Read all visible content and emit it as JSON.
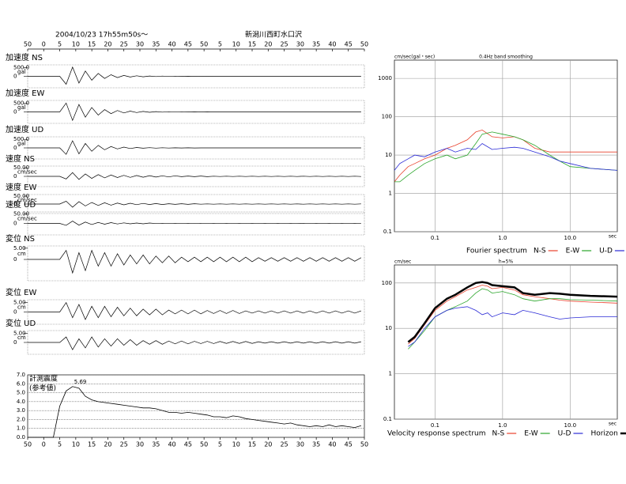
{
  "chart_data": [
    {
      "type": "waveform",
      "title": "2004/10/23  17h55m50s～",
      "subtitle": "新潟川西町水口沢",
      "x": [
        0,
        2,
        4,
        6,
        8,
        10,
        12,
        14,
        16,
        18,
        20,
        22,
        24,
        26,
        28,
        30,
        32,
        34,
        36,
        38,
        40,
        42,
        44,
        46,
        48,
        50,
        52,
        54,
        56,
        58,
        60,
        62,
        64,
        66,
        68,
        70,
        72,
        74,
        76,
        78,
        80,
        82,
        84,
        86,
        88,
        90,
        92,
        94,
        96,
        98,
        100,
        102,
        104
      ],
      "xlim": [
        0,
        105
      ],
      "xticks": [
        {
          "value": 0,
          "label": "50"
        },
        {
          "value": 5,
          "label": "0"
        },
        {
          "value": 10,
          "label": "5"
        },
        {
          "value": 15,
          "label": "10"
        },
        {
          "value": 20,
          "label": "15"
        },
        {
          "value": 25,
          "label": "20"
        },
        {
          "value": 30,
          "label": "25"
        },
        {
          "value": 35,
          "label": "30"
        },
        {
          "value": 40,
          "label": "35"
        },
        {
          "value": 45,
          "label": "40"
        },
        {
          "value": 50,
          "label": "45"
        },
        {
          "value": 55,
          "label": "50"
        },
        {
          "value": 60,
          "label": "5"
        },
        {
          "value": 65,
          "label": "10"
        },
        {
          "value": 70,
          "label": "15"
        },
        {
          "value": 75,
          "label": "20"
        },
        {
          "value": 80,
          "label": "25"
        },
        {
          "value": 85,
          "label": "30"
        },
        {
          "value": 90,
          "label": "35"
        },
        {
          "value": 95,
          "label": "40"
        },
        {
          "value": 100,
          "label": "45"
        },
        {
          "value": 105,
          "label": "50"
        }
      ],
      "series": [
        {
          "name": "加速度 NS",
          "unit": "gal",
          "color": "#000",
          "ylim": [
            -650,
            650
          ],
          "yticks": [
            {
              "value": 500,
              "label": "500.0"
            },
            0
          ],
          "values": [
            0,
            0,
            0,
            0,
            0,
            0,
            -450,
            520,
            -380,
            300,
            -220,
            160,
            -120,
            90,
            -70,
            50,
            -40,
            30,
            -25,
            20,
            -15,
            12,
            -10,
            8,
            -6,
            5,
            -4,
            3,
            -3,
            2,
            -2,
            2,
            -2,
            1,
            -1,
            1,
            -1,
            1,
            -1,
            1,
            -1,
            1,
            -1,
            1,
            -1,
            1,
            -1,
            1,
            -1,
            1,
            -1,
            1,
            -1
          ]
        },
        {
          "name": "加速度 EW",
          "unit": "gal",
          "color": "#000",
          "ylim": [
            -650,
            650
          ],
          "yticks": [
            {
              "value": 500,
              "label": "500.0"
            },
            0
          ],
          "values": [
            0,
            0,
            0,
            0,
            0,
            0,
            500,
            -480,
            420,
            -300,
            250,
            -180,
            130,
            -100,
            80,
            -60,
            45,
            -35,
            28,
            -22,
            18,
            -14,
            11,
            -9,
            7,
            -6,
            5,
            -4,
            3,
            -3,
            2,
            -2,
            2,
            -2,
            1,
            -1,
            1,
            -1,
            1,
            -1,
            1,
            -1,
            1,
            -1,
            1,
            -1,
            1,
            -1,
            1,
            -1,
            1,
            -1,
            1
          ]
        },
        {
          "name": "加速度 UD",
          "unit": "gal",
          "color": "#000",
          "ylim": [
            -650,
            650
          ],
          "yticks": [
            {
              "value": 500,
              "label": "500.0"
            },
            0
          ],
          "values": [
            0,
            0,
            0,
            0,
            0,
            0,
            -380,
            420,
            -350,
            260,
            -200,
            150,
            -110,
            80,
            -60,
            45,
            -35,
            25,
            -20,
            15,
            -12,
            9,
            -7,
            5,
            -4,
            3,
            -3,
            2,
            -2,
            2,
            -1,
            1,
            -1,
            1,
            -1,
            1,
            -1,
            1,
            -1,
            1,
            -1,
            1,
            -1,
            1,
            -1,
            1,
            -1,
            1,
            -1,
            1,
            -1,
            1,
            -1
          ]
        },
        {
          "name": "速度 NS",
          "unit": "cm/sec",
          "color": "#000",
          "ylim": [
            -60,
            60
          ],
          "yticks": [
            {
              "value": 50,
              "label": "50.00"
            },
            0
          ],
          "values": [
            0,
            0,
            0,
            0,
            0,
            0,
            -15,
            22,
            -18,
            14,
            -12,
            10,
            -9,
            8,
            -7,
            6,
            -6,
            5,
            -5,
            4,
            -4,
            3,
            -3,
            3,
            -2,
            2,
            -2,
            2,
            -2,
            1,
            -1,
            1,
            -1,
            1,
            -1,
            1,
            -1,
            1,
            -1,
            1,
            -1,
            1,
            -1,
            1,
            -1,
            1,
            -1,
            1,
            -1,
            1,
            -1,
            1,
            -1
          ]
        },
        {
          "name": "速度 EW",
          "unit": "cm/sec",
          "color": "#000",
          "ylim": [
            -60,
            60
          ],
          "yticks": [
            {
              "value": 50,
              "label": "50.00"
            },
            0
          ],
          "values": [
            0,
            0,
            0,
            0,
            0,
            0,
            18,
            -20,
            15,
            -12,
            10,
            -9,
            8,
            -7,
            6,
            -5,
            5,
            -4,
            4,
            -3,
            3,
            -3,
            2,
            -2,
            2,
            -2,
            2,
            -1,
            1,
            -1,
            1,
            -1,
            1,
            -1,
            1,
            -1,
            1,
            -1,
            1,
            -1,
            1,
            -1,
            1,
            -1,
            1,
            -1,
            1,
            -1,
            1,
            -1,
            1,
            -1,
            1
          ]
        },
        {
          "name": "速度 UD",
          "unit": "cm/sec",
          "color": "#000",
          "ylim": [
            -60,
            60
          ],
          "yticks": [
            {
              "value": 50,
              "label": "50.00"
            },
            0
          ],
          "values": [
            0,
            0,
            0,
            0,
            0,
            0,
            -10,
            12,
            -9,
            7,
            -6,
            5,
            -4,
            4,
            -3,
            3,
            -2,
            2,
            -2,
            2,
            -1,
            1,
            -1,
            1,
            -1,
            1,
            -1,
            1,
            -1,
            1,
            -1,
            1,
            -1,
            1,
            -1,
            1,
            -1,
            1,
            -1,
            1,
            -1,
            1,
            -1,
            1,
            -1,
            1,
            -1,
            1,
            -1,
            1,
            -1,
            1,
            -1
          ]
        },
        {
          "name": "変位 NS",
          "unit": "cm",
          "color": "#000",
          "ylim": [
            -9.5,
            6
          ],
          "yticks": [
            {
              "value": 5,
              "label": "5.00"
            },
            0
          ],
          "values": [
            0,
            0,
            0,
            0,
            0,
            0,
            4,
            -6,
            3,
            -5,
            4,
            -3,
            3,
            -3,
            2.5,
            -2.5,
            2,
            -2,
            2,
            -2,
            1.5,
            -1.5,
            1.5,
            -1.5,
            1,
            -1,
            1,
            -1,
            1,
            -1,
            1,
            -1,
            1,
            -1,
            1,
            -1,
            0.8,
            -0.8,
            0.8,
            -0.8,
            0.8,
            -0.8,
            0.8,
            -0.8,
            0.8,
            -0.8,
            0.8,
            -0.8,
            0.8,
            -0.8,
            0.8,
            -0.8,
            0.8
          ]
        },
        {
          "name": "変位 EW",
          "unit": "cm",
          "color": "#000",
          "ylim": [
            -6.5,
            6.5
          ],
          "yticks": [
            {
              "value": 5,
              "label": "5.00"
            },
            0
          ],
          "values": [
            0,
            0,
            0,
            0,
            0,
            0,
            5,
            -3,
            4,
            -4,
            3,
            -3,
            3,
            -2.5,
            2.5,
            -2,
            2,
            -2,
            1.5,
            -1.5,
            1.5,
            -1.5,
            1,
            -1,
            1,
            -1,
            1,
            -1,
            0.8,
            -0.8,
            0.8,
            -0.8,
            0.8,
            -0.8,
            0.6,
            -0.6,
            0.6,
            -0.6,
            0.6,
            -0.6,
            0.6,
            -0.6,
            0.6,
            -0.6,
            0.6,
            -0.6,
            0.6,
            -0.6,
            0.6,
            -0.6,
            0.6,
            -0.6,
            0.6
          ]
        },
        {
          "name": "変位 UD",
          "unit": "cm",
          "color": "#000",
          "ylim": [
            -6.5,
            6.5
          ],
          "yticks": [
            {
              "value": 5,
              "label": "5.00"
            },
            0
          ],
          "values": [
            0,
            0,
            0,
            0,
            0,
            0,
            3,
            -4,
            2,
            -3,
            3,
            -2.5,
            2,
            -2,
            2,
            -1.5,
            1.5,
            -1.5,
            1,
            -1,
            1,
            -1,
            0.8,
            -0.8,
            0.8,
            -0.8,
            0.6,
            -0.6,
            0.6,
            -0.6,
            0.5,
            -0.5,
            0.5,
            -0.5,
            0.5,
            -0.5,
            0.4,
            -0.4,
            0.4,
            -0.4,
            0.4,
            -0.4,
            0.4,
            -0.4,
            0.4,
            -0.4,
            0.4,
            -0.4,
            0.4,
            -0.4,
            0.4,
            -0.4,
            0.4
          ]
        }
      ]
    },
    {
      "type": "line",
      "subtitle": "(参考値)",
      "grid": true,
      "label_max": true,
      "ylim": [
        0,
        7
      ],
      "yticks": [
        {
          "value": 0,
          "label": "0.0"
        },
        {
          "value": 1,
          "label": "1.0"
        },
        {
          "value": 2,
          "label": "2.0"
        },
        {
          "value": 3,
          "label": "3.0"
        },
        {
          "value": 4,
          "label": "4.0"
        },
        {
          "value": 5,
          "label": "5.0"
        },
        {
          "value": 6,
          "label": "6.0"
        },
        {
          "value": 7,
          "label": "7.0"
        }
      ],
      "series": [
        {
          "name": "計測震度",
          "color": "#000",
          "values": [
            0,
            0,
            0,
            0,
            0,
            3.5,
            5.2,
            5.69,
            5.5,
            4.6,
            4.2,
            4.0,
            3.9,
            3.8,
            3.7,
            3.6,
            3.5,
            3.4,
            3.3,
            3.3,
            3.2,
            3.0,
            2.8,
            2.8,
            2.7,
            2.8,
            2.7,
            2.6,
            2.5,
            2.3,
            2.3,
            2.2,
            2.4,
            2.3,
            2.1,
            2.0,
            1.9,
            1.8,
            1.7,
            1.6,
            1.5,
            1.6,
            1.4,
            1.3,
            1.2,
            1.3,
            1.2,
            1.4,
            1.2,
            1.3,
            1.2,
            1.1,
            1.3
          ]
        }
      ]
    },
    {
      "type": "line",
      "log": true,
      "grid": true,
      "title": "0.4Hz band smoothing",
      "ylabel": "cm/sec(gal・sec)",
      "xlabel": "sec",
      "legend_title": "Fourier spectrum",
      "x": [
        0.025,
        0.03,
        0.04,
        0.05,
        0.07,
        0.1,
        0.15,
        0.2,
        0.3,
        0.4,
        0.5,
        0.7,
        1,
        1.5,
        2,
        3,
        5,
        7,
        10,
        20,
        50
      ],
      "xlim": [
        0.025,
        50
      ],
      "ylim": [
        0.1,
        3000
      ],
      "xticks": [
        0.1,
        {
          "value": 1,
          "label": "1.0"
        },
        {
          "value": 10,
          "label": "10.0"
        }
      ],
      "yticks": [
        0.1,
        1,
        10,
        100,
        1000
      ],
      "series": [
        {
          "name": "N-S",
          "color": "#e8412c",
          "values": [
            2,
            3,
            5,
            6,
            8,
            10,
            15,
            18,
            25,
            40,
            45,
            30,
            28,
            30,
            25,
            15,
            12,
            12,
            12,
            12,
            12
          ]
        },
        {
          "name": "E-W",
          "color": "#2aa52a",
          "values": [
            2,
            2,
            3,
            4,
            6,
            8,
            10,
            8,
            10,
            20,
            35,
            40,
            35,
            30,
            25,
            18,
            10,
            7,
            5,
            4.5,
            4
          ]
        },
        {
          "name": "U-D",
          "color": "#2a2ad6",
          "values": [
            4,
            6,
            8,
            10,
            9,
            12,
            15,
            12,
            15,
            14,
            20,
            14,
            15,
            16,
            15,
            12,
            9,
            7,
            6,
            4.5,
            4
          ]
        }
      ]
    },
    {
      "type": "line",
      "log": true,
      "grid": true,
      "title": "h=5%",
      "ylabel": "cm/sec",
      "xlabel": "sec",
      "legend_title": "Velocity response spectrum",
      "x": [
        0.04,
        0.05,
        0.07,
        0.1,
        0.15,
        0.2,
        0.3,
        0.4,
        0.5,
        0.6,
        0.7,
        1,
        1.5,
        2,
        3,
        5,
        7,
        10,
        20,
        50
      ],
      "xlim": [
        0.025,
        50
      ],
      "ylim": [
        0.1,
        250
      ],
      "xticks": [
        0.1,
        {
          "value": 1,
          "label": "1.0"
        },
        {
          "value": 10,
          "label": "10.0"
        }
      ],
      "yticks": [
        0.1,
        1,
        10,
        100
      ],
      "series": [
        {
          "name": "N-S",
          "color": "#e8412c",
          "values": [
            4.5,
            6,
            12,
            25,
            40,
            50,
            70,
            80,
            90,
            85,
            75,
            80,
            70,
            55,
            50,
            45,
            42,
            40,
            38,
            36
          ]
        },
        {
          "name": "E-W",
          "color": "#2aa52a",
          "values": [
            3.5,
            5,
            9,
            18,
            25,
            30,
            40,
            60,
            75,
            70,
            60,
            65,
            55,
            45,
            40,
            45,
            45,
            43,
            42,
            40
          ]
        },
        {
          "name": "U-D",
          "color": "#2a2ad6",
          "values": [
            4,
            5,
            10,
            18,
            25,
            28,
            30,
            25,
            20,
            22,
            18,
            22,
            20,
            25,
            22,
            18,
            16,
            17,
            18,
            18
          ]
        },
        {
          "name": "Horizon",
          "color": "#000",
          "width": 2.5,
          "values": [
            5,
            6.5,
            13,
            28,
            45,
            55,
            80,
            100,
            105,
            100,
            90,
            85,
            80,
            60,
            55,
            60,
            58,
            55,
            52,
            50
          ]
        }
      ]
    }
  ]
}
